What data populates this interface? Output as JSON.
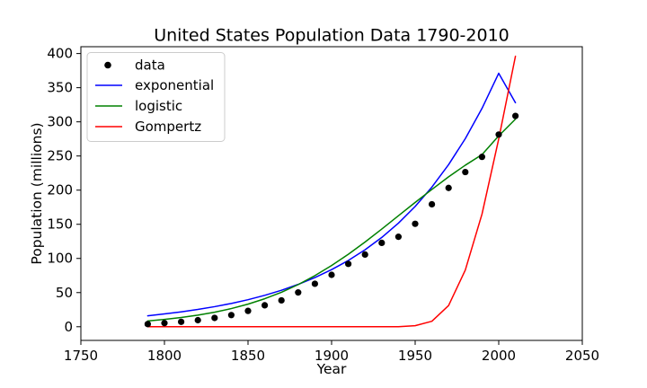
{
  "chart_data": {
    "type": "line",
    "title": "United States Population Data 1790-2010",
    "xlabel": "Year",
    "ylabel": "Population (millions)",
    "xlim": [
      1750,
      2050
    ],
    "ylim": [
      -20,
      410
    ],
    "xticks": [
      1750,
      1800,
      1850,
      1900,
      1950,
      2000,
      2050
    ],
    "yticks": [
      0,
      50,
      100,
      150,
      200,
      250,
      300,
      350,
      400
    ],
    "grid": false,
    "legend_position": "top-left",
    "colors": {
      "data": "#000000",
      "exponential": "#0000ff",
      "logistic": "#008000",
      "Gompertz": "#ff0000",
      "axes": "#000000",
      "background": "#ffffff"
    },
    "data": {
      "name": "data",
      "x": [
        1790,
        1800,
        1810,
        1820,
        1830,
        1840,
        1850,
        1860,
        1870,
        1880,
        1890,
        1900,
        1910,
        1920,
        1930,
        1940,
        1950,
        1960,
        1970,
        1980,
        1990,
        2000,
        2010
      ],
      "y": [
        3.9,
        5.3,
        7.2,
        9.6,
        12.9,
        17.1,
        23.2,
        31.4,
        38.6,
        50.2,
        62.9,
        76.0,
        92.0,
        105.7,
        122.8,
        131.7,
        150.7,
        179.3,
        203.2,
        226.5,
        248.7,
        281.4,
        308.7
      ]
    },
    "series": [
      {
        "name": "exponential",
        "x": [
          1790,
          1800,
          1810,
          1820,
          1830,
          1840,
          1850,
          1860,
          1870,
          1880,
          1890,
          1900,
          1910,
          1920,
          1930,
          1940,
          1950,
          1960,
          1970,
          1980,
          1990,
          2000,
          2010
        ],
        "y": [
          16,
          18.8,
          21.8,
          25.3,
          29.4,
          34.1,
          39.6,
          46,
          53.4,
          62,
          72,
          83.6,
          97,
          112.6,
          130.7,
          151.7,
          176.1,
          204.4,
          237.3,
          275.4,
          319.7,
          371.1,
          328
        ]
      },
      {
        "name": "logistic",
        "x": [
          1790,
          1800,
          1810,
          1820,
          1830,
          1840,
          1850,
          1860,
          1870,
          1880,
          1890,
          1900,
          1910,
          1920,
          1930,
          1940,
          1950,
          1960,
          1970,
          1980,
          1990,
          2000,
          2010
        ],
        "y": [
          8.5,
          10.8,
          13.5,
          17,
          21.3,
          26.6,
          33.1,
          41,
          50.5,
          61.7,
          74.8,
          89.6,
          106.1,
          124,
          143,
          162.5,
          182,
          201,
          219.5,
          236.5,
          252,
          279.5,
          304
        ]
      },
      {
        "name": "Gompertz",
        "x": [
          1790,
          1800,
          1810,
          1820,
          1830,
          1840,
          1850,
          1860,
          1870,
          1880,
          1890,
          1900,
          1910,
          1920,
          1930,
          1940,
          1950,
          1960,
          1970,
          1980,
          1990,
          2000,
          2010
        ],
        "y": [
          0,
          0,
          0,
          0,
          0,
          0,
          0,
          0,
          0,
          0,
          0,
          0,
          0,
          0,
          0,
          0,
          1.5,
          8,
          31,
          83,
          165,
          275,
          396
        ]
      }
    ]
  }
}
